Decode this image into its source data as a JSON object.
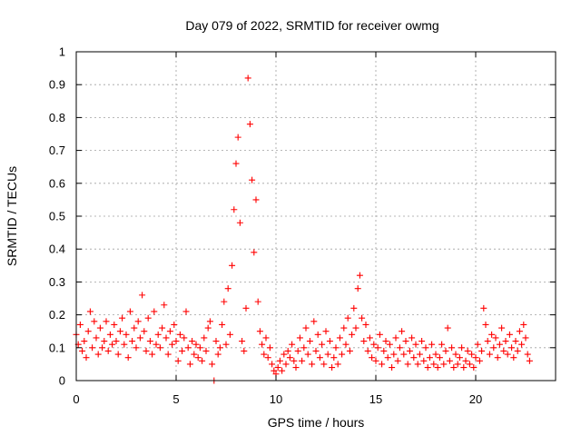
{
  "chart_data": {
    "type": "scatter",
    "title": "Day 079 of 2022, SRMTID for receiver owmg",
    "xlabel": "GPS time / hours",
    "ylabel": "SRMTID / TECUs",
    "xlim": [
      0,
      24
    ],
    "ylim": [
      0,
      1
    ],
    "xticks": [
      0,
      5,
      10,
      15,
      20
    ],
    "xtick_labels": [
      "0",
      "5",
      "10",
      "15",
      "20"
    ],
    "yticks": [
      0,
      0.1,
      0.2,
      0.3,
      0.4,
      0.5,
      0.6,
      0.7,
      0.8,
      0.9,
      1
    ],
    "ytick_labels": [
      "0",
      "0.1",
      "0.2",
      "0.3",
      "0.4",
      "0.5",
      "0.6",
      "0.7",
      "0.8",
      "0.9",
      "1"
    ],
    "grid": true,
    "marker": "+",
    "series": [
      {
        "name": "SRMTID",
        "color": "#ff0000",
        "points": [
          [
            0.0,
            0.14
          ],
          [
            0.1,
            0.11
          ],
          [
            0.2,
            0.17
          ],
          [
            0.3,
            0.09
          ],
          [
            0.4,
            0.12
          ],
          [
            0.5,
            0.07
          ],
          [
            0.6,
            0.15
          ],
          [
            0.7,
            0.21
          ],
          [
            0.8,
            0.1
          ],
          [
            0.9,
            0.18
          ],
          [
            1.0,
            0.13
          ],
          [
            1.1,
            0.08
          ],
          [
            1.2,
            0.16
          ],
          [
            1.3,
            0.1
          ],
          [
            1.4,
            0.12
          ],
          [
            1.5,
            0.18
          ],
          [
            1.6,
            0.09
          ],
          [
            1.7,
            0.14
          ],
          [
            1.8,
            0.11
          ],
          [
            1.9,
            0.17
          ],
          [
            2.0,
            0.12
          ],
          [
            2.1,
            0.08
          ],
          [
            2.2,
            0.15
          ],
          [
            2.3,
            0.19
          ],
          [
            2.4,
            0.11
          ],
          [
            2.5,
            0.14
          ],
          [
            2.6,
            0.07
          ],
          [
            2.7,
            0.21
          ],
          [
            2.8,
            0.12
          ],
          [
            2.9,
            0.16
          ],
          [
            3.0,
            0.1
          ],
          [
            3.1,
            0.18
          ],
          [
            3.2,
            0.13
          ],
          [
            3.3,
            0.26
          ],
          [
            3.4,
            0.15
          ],
          [
            3.5,
            0.09
          ],
          [
            3.6,
            0.19
          ],
          [
            3.7,
            0.12
          ],
          [
            3.8,
            0.08
          ],
          [
            3.9,
            0.21
          ],
          [
            4.0,
            0.11
          ],
          [
            4.1,
            0.14
          ],
          [
            4.2,
            0.1
          ],
          [
            4.3,
            0.16
          ],
          [
            4.4,
            0.23
          ],
          [
            4.5,
            0.13
          ],
          [
            4.6,
            0.08
          ],
          [
            4.7,
            0.15
          ],
          [
            4.8,
            0.11
          ],
          [
            4.9,
            0.17
          ],
          [
            5.0,
            0.12
          ],
          [
            5.1,
            0.06
          ],
          [
            5.2,
            0.14
          ],
          [
            5.3,
            0.09
          ],
          [
            5.4,
            0.13
          ],
          [
            5.5,
            0.21
          ],
          [
            5.6,
            0.1
          ],
          [
            5.7,
            0.05
          ],
          [
            5.8,
            0.12
          ],
          [
            5.9,
            0.08
          ],
          [
            6.0,
            0.11
          ],
          [
            6.1,
            0.07
          ],
          [
            6.2,
            0.1
          ],
          [
            6.3,
            0.06
          ],
          [
            6.4,
            0.13
          ],
          [
            6.5,
            0.09
          ],
          [
            6.6,
            0.16
          ],
          [
            6.7,
            0.18
          ],
          [
            6.8,
            0.05
          ],
          [
            6.9,
            0.0
          ],
          [
            7.0,
            0.12
          ],
          [
            7.1,
            0.08
          ],
          [
            7.2,
            0.1
          ],
          [
            7.3,
            0.17
          ],
          [
            7.4,
            0.24
          ],
          [
            7.5,
            0.11
          ],
          [
            7.6,
            0.28
          ],
          [
            7.7,
            0.14
          ],
          [
            7.8,
            0.35
          ],
          [
            7.9,
            0.52
          ],
          [
            8.0,
            0.66
          ],
          [
            8.1,
            0.74
          ],
          [
            8.2,
            0.48
          ],
          [
            8.3,
            0.12
          ],
          [
            8.4,
            0.09
          ],
          [
            8.5,
            0.22
          ],
          [
            8.6,
            0.92
          ],
          [
            8.7,
            0.78
          ],
          [
            8.8,
            0.61
          ],
          [
            8.9,
            0.39
          ],
          [
            9.0,
            0.55
          ],
          [
            9.1,
            0.24
          ],
          [
            9.2,
            0.15
          ],
          [
            9.3,
            0.11
          ],
          [
            9.4,
            0.08
          ],
          [
            9.5,
            0.13
          ],
          [
            9.6,
            0.07
          ],
          [
            9.7,
            0.1
          ],
          [
            9.8,
            0.05
          ],
          [
            9.9,
            0.03
          ],
          [
            10.0,
            0.02
          ],
          [
            10.1,
            0.04
          ],
          [
            10.2,
            0.06
          ],
          [
            10.3,
            0.03
          ],
          [
            10.4,
            0.08
          ],
          [
            10.5,
            0.05
          ],
          [
            10.6,
            0.09
          ],
          [
            10.7,
            0.07
          ],
          [
            10.8,
            0.11
          ],
          [
            10.9,
            0.06
          ],
          [
            11.0,
            0.04
          ],
          [
            11.1,
            0.09
          ],
          [
            11.2,
            0.13
          ],
          [
            11.3,
            0.06
          ],
          [
            11.4,
            0.1
          ],
          [
            11.5,
            0.16
          ],
          [
            11.6,
            0.08
          ],
          [
            11.7,
            0.12
          ],
          [
            11.8,
            0.05
          ],
          [
            11.9,
            0.18
          ],
          [
            12.0,
            0.09
          ],
          [
            12.1,
            0.14
          ],
          [
            12.2,
            0.07
          ],
          [
            12.3,
            0.11
          ],
          [
            12.4,
            0.05
          ],
          [
            12.5,
            0.15
          ],
          [
            12.6,
            0.08
          ],
          [
            12.7,
            0.12
          ],
          [
            12.8,
            0.04
          ],
          [
            12.9,
            0.07
          ],
          [
            13.0,
            0.1
          ],
          [
            13.1,
            0.05
          ],
          [
            13.2,
            0.13
          ],
          [
            13.3,
            0.08
          ],
          [
            13.4,
            0.16
          ],
          [
            13.5,
            0.11
          ],
          [
            13.6,
            0.19
          ],
          [
            13.7,
            0.09
          ],
          [
            13.8,
            0.14
          ],
          [
            13.9,
            0.22
          ],
          [
            14.0,
            0.16
          ],
          [
            14.1,
            0.28
          ],
          [
            14.2,
            0.32
          ],
          [
            14.3,
            0.19
          ],
          [
            14.4,
            0.12
          ],
          [
            14.5,
            0.17
          ],
          [
            14.6,
            0.09
          ],
          [
            14.7,
            0.13
          ],
          [
            14.8,
            0.07
          ],
          [
            14.9,
            0.11
          ],
          [
            15.0,
            0.06
          ],
          [
            15.1,
            0.1
          ],
          [
            15.2,
            0.14
          ],
          [
            15.3,
            0.05
          ],
          [
            15.4,
            0.09
          ],
          [
            15.5,
            0.12
          ],
          [
            15.6,
            0.07
          ],
          [
            15.7,
            0.11
          ],
          [
            15.8,
            0.04
          ],
          [
            15.9,
            0.08
          ],
          [
            16.0,
            0.13
          ],
          [
            16.1,
            0.06
          ],
          [
            16.2,
            0.1
          ],
          [
            16.3,
            0.15
          ],
          [
            16.4,
            0.08
          ],
          [
            16.5,
            0.12
          ],
          [
            16.6,
            0.05
          ],
          [
            16.7,
            0.09
          ],
          [
            16.8,
            0.13
          ],
          [
            16.9,
            0.07
          ],
          [
            17.0,
            0.11
          ],
          [
            17.1,
            0.05
          ],
          [
            17.2,
            0.08
          ],
          [
            17.3,
            0.12
          ],
          [
            17.4,
            0.06
          ],
          [
            17.5,
            0.1
          ],
          [
            17.6,
            0.04
          ],
          [
            17.7,
            0.07
          ],
          [
            17.8,
            0.11
          ],
          [
            17.9,
            0.05
          ],
          [
            18.0,
            0.08
          ],
          [
            18.1,
            0.04
          ],
          [
            18.2,
            0.07
          ],
          [
            18.3,
            0.11
          ],
          [
            18.4,
            0.05
          ],
          [
            18.5,
            0.09
          ],
          [
            18.6,
            0.16
          ],
          [
            18.7,
            0.06
          ],
          [
            18.8,
            0.1
          ],
          [
            18.9,
            0.04
          ],
          [
            19.0,
            0.08
          ],
          [
            19.1,
            0.05
          ],
          [
            19.2,
            0.07
          ],
          [
            19.3,
            0.1
          ],
          [
            19.4,
            0.04
          ],
          [
            19.5,
            0.06
          ],
          [
            19.6,
            0.09
          ],
          [
            19.7,
            0.05
          ],
          [
            19.8,
            0.08
          ],
          [
            19.9,
            0.04
          ],
          [
            20.0,
            0.07
          ],
          [
            20.1,
            0.11
          ],
          [
            20.2,
            0.06
          ],
          [
            20.3,
            0.09
          ],
          [
            20.4,
            0.22
          ],
          [
            20.5,
            0.17
          ],
          [
            20.6,
            0.12
          ],
          [
            20.7,
            0.08
          ],
          [
            20.8,
            0.14
          ],
          [
            20.9,
            0.1
          ],
          [
            21.0,
            0.13
          ],
          [
            21.1,
            0.07
          ],
          [
            21.2,
            0.11
          ],
          [
            21.3,
            0.16
          ],
          [
            21.4,
            0.09
          ],
          [
            21.5,
            0.12
          ],
          [
            21.6,
            0.08
          ],
          [
            21.7,
            0.14
          ],
          [
            21.8,
            0.1
          ],
          [
            21.9,
            0.07
          ],
          [
            22.0,
            0.12
          ],
          [
            22.1,
            0.09
          ],
          [
            22.2,
            0.15
          ],
          [
            22.3,
            0.11
          ],
          [
            22.4,
            0.17
          ],
          [
            22.5,
            0.13
          ],
          [
            22.6,
            0.08
          ],
          [
            22.7,
            0.06
          ]
        ]
      }
    ]
  }
}
